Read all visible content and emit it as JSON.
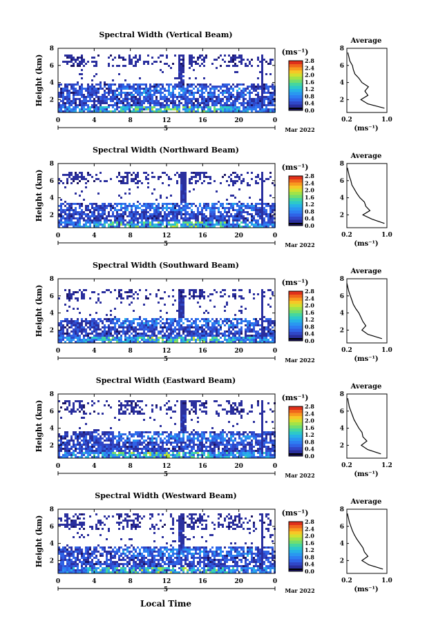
{
  "figure": {
    "xlabel": "Local Time",
    "date_label": "Mar 2022",
    "day_label": "5",
    "ylabel": "Height (km)",
    "unit_label": "(ms⁻¹)",
    "average_title": "Average",
    "average_xlabel": "(ms⁻¹)"
  },
  "colormap": [
    "#1b1464",
    "#2a2f9e",
    "#3047c8",
    "#2f63e6",
    "#2d7ef2",
    "#2a97f0",
    "#27b2e6",
    "#2dc9c9",
    "#45d6a0",
    "#72de6e",
    "#a2e348",
    "#d2e030",
    "#f6c826",
    "#f89a1f",
    "#f0661c",
    "#e0301a"
  ],
  "chart_data": [
    {
      "type": "heatmap",
      "title": "Spectral Width (Vertical Beam)",
      "xlabel": "Local Time",
      "ylabel": "Height (km)",
      "x_range": [
        0,
        24
      ],
      "y_range": [
        0.5,
        8
      ],
      "x_ticks": [
        "0",
        "4",
        "8",
        "12",
        "16",
        "20",
        "0"
      ],
      "y_ticks": [
        "2",
        "4",
        "6",
        "8"
      ],
      "colorbar": {
        "label": "(ms⁻¹)",
        "ticks": [
          "0.0",
          "0.4",
          "0.8",
          "1.2",
          "1.6",
          "2.0",
          "2.4",
          "2.8"
        ],
        "range": [
          0,
          2.8
        ]
      },
      "low_layer_top_km": 3.9,
      "gap_km": [
        4.0,
        5.9
      ],
      "upper_top_km": 7.3,
      "average_profile": {
        "xlim": [
          0.2,
          1.0
        ],
        "x_ticks": [
          "0.2",
          "1.0"
        ],
        "ylim": [
          0.5,
          8
        ],
        "y_ticks": [
          "2",
          "4",
          "6",
          "8"
        ],
        "height_km": [
          1.0,
          1.5,
          2.0,
          2.5,
          3.0,
          3.5,
          4.0,
          4.5,
          5.0,
          5.5,
          6.0,
          6.5,
          7.0,
          7.5
        ],
        "width": [
          0.95,
          0.62,
          0.48,
          0.62,
          0.56,
          0.63,
          0.5,
          0.44,
          0.36,
          0.33,
          0.31,
          0.26,
          0.24,
          0.22
        ]
      }
    },
    {
      "type": "heatmap",
      "title": "Spectral Width (Northward Beam)",
      "xlabel": "Local Time",
      "ylabel": "Height (km)",
      "x_range": [
        0,
        24
      ],
      "y_range": [
        0.5,
        8
      ],
      "x_ticks": [
        "0",
        "4",
        "8",
        "12",
        "16",
        "20",
        "0"
      ],
      "y_ticks": [
        "2",
        "4",
        "6",
        "8"
      ],
      "colorbar": {
        "label": "(ms⁻¹)",
        "ticks": [
          "0.0",
          "0.4",
          "0.8",
          "1.2",
          "1.6",
          "2.0",
          "2.4",
          "2.8"
        ],
        "range": [
          0,
          2.8
        ]
      },
      "low_layer_top_km": 3.6,
      "gap_km": [
        3.7,
        5.7
      ],
      "upper_top_km": 7.1,
      "average_profile": {
        "xlim": [
          0.2,
          1.0
        ],
        "x_ticks": [
          "0.2",
          "1.0"
        ],
        "ylim": [
          0.5,
          8
        ],
        "y_ticks": [
          "2",
          "4",
          "6",
          "8"
        ],
        "height_km": [
          1.0,
          1.5,
          2.0,
          2.5,
          3.0,
          3.5,
          4.0,
          4.5,
          5.0,
          5.5,
          6.0,
          6.5,
          7.0,
          7.5
        ],
        "width": [
          0.95,
          0.7,
          0.52,
          0.66,
          0.58,
          0.55,
          0.46,
          0.4,
          0.35,
          0.3,
          0.28,
          0.25,
          0.23,
          0.21
        ]
      }
    },
    {
      "type": "heatmap",
      "title": "Spectral Width (Southward Beam)",
      "xlabel": "Local Time",
      "ylabel": "Height (km)",
      "x_range": [
        0,
        24
      ],
      "y_range": [
        0.5,
        8
      ],
      "x_ticks": [
        "0",
        "4",
        "8",
        "12",
        "16",
        "20",
        "0"
      ],
      "y_ticks": [
        "2",
        "4",
        "6",
        "8"
      ],
      "colorbar": {
        "label": "(ms⁻¹)",
        "ticks": [
          "0.0",
          "0.4",
          "0.8",
          "1.2",
          "1.6",
          "2.0",
          "2.4",
          "2.8"
        ],
        "range": [
          0,
          2.8
        ]
      },
      "low_layer_top_km": 3.5,
      "gap_km": [
        3.6,
        5.6
      ],
      "upper_top_km": 7.0,
      "average_profile": {
        "xlim": [
          0.2,
          1.0
        ],
        "x_ticks": [
          "0.2",
          "1.0"
        ],
        "ylim": [
          0.5,
          8
        ],
        "y_ticks": [
          "2",
          "4",
          "6",
          "8"
        ],
        "height_km": [
          1.0,
          1.5,
          2.0,
          2.5,
          3.0,
          3.5,
          4.0,
          4.5,
          5.0,
          5.5,
          6.0,
          6.5,
          7.0,
          7.5
        ],
        "width": [
          0.9,
          0.62,
          0.5,
          0.58,
          0.52,
          0.48,
          0.44,
          0.38,
          0.33,
          0.3,
          0.27,
          0.24,
          0.22,
          0.2
        ]
      }
    },
    {
      "type": "heatmap",
      "title": "Spectral Width (Eastward Beam)",
      "xlabel": "Local Time",
      "ylabel": "Height (km)",
      "x_range": [
        0,
        24
      ],
      "y_range": [
        0.5,
        8
      ],
      "x_ticks": [
        "0",
        "4",
        "8",
        "12",
        "16",
        "20",
        "0"
      ],
      "y_ticks": [
        "2",
        "4",
        "6",
        "8"
      ],
      "colorbar": {
        "label": "(ms⁻¹)",
        "ticks": [
          "0.0",
          "0.4",
          "0.8",
          "1.2",
          "1.6",
          "2.0",
          "2.4",
          "2.8"
        ],
        "range": [
          0,
          2.8
        ]
      },
      "low_layer_top_km": 3.8,
      "gap_km": [
        3.9,
        5.8
      ],
      "upper_top_km": 7.4,
      "average_profile": {
        "xlim": [
          0.2,
          1.2
        ],
        "x_ticks": [
          "0.2",
          "1.2"
        ],
        "ylim": [
          0.5,
          8
        ],
        "y_ticks": [
          "2",
          "4",
          "6",
          "8"
        ],
        "height_km": [
          1.0,
          1.5,
          2.0,
          2.5,
          3.0,
          3.5,
          4.0,
          4.5,
          5.0,
          5.5,
          6.0,
          6.5,
          7.0,
          7.5
        ],
        "width": [
          1.05,
          0.72,
          0.56,
          0.7,
          0.6,
          0.58,
          0.5,
          0.44,
          0.38,
          0.34,
          0.3,
          0.26,
          0.24,
          0.22
        ]
      }
    },
    {
      "type": "heatmap",
      "title": "Spectral Width (Westward Beam)",
      "xlabel": "Local Time",
      "ylabel": "Height (km)",
      "x_range": [
        0,
        24
      ],
      "y_range": [
        0.5,
        8
      ],
      "x_ticks": [
        "0",
        "4",
        "8",
        "12",
        "16",
        "20",
        "0"
      ],
      "y_ticks": [
        "2",
        "4",
        "6",
        "8"
      ],
      "colorbar": {
        "label": "(ms⁻¹)",
        "ticks": [
          "0.0",
          "0.4",
          "0.8",
          "1.2",
          "1.6",
          "2.0",
          "2.4",
          "2.8"
        ],
        "range": [
          0,
          2.8
        ]
      },
      "low_layer_top_km": 3.7,
      "gap_km": [
        3.8,
        5.6
      ],
      "upper_top_km": 7.6,
      "average_profile": {
        "xlim": [
          0.2,
          1.0
        ],
        "x_ticks": [
          "0.2",
          "1.0"
        ],
        "ylim": [
          0.5,
          8
        ],
        "y_ticks": [
          "2",
          "4",
          "6",
          "8"
        ],
        "height_km": [
          1.0,
          1.5,
          2.0,
          2.5,
          3.0,
          3.5,
          4.0,
          4.5,
          5.0,
          5.5,
          6.0,
          6.5,
          7.0,
          7.5
        ],
        "width": [
          0.92,
          0.64,
          0.5,
          0.62,
          0.55,
          0.52,
          0.46,
          0.4,
          0.35,
          0.31,
          0.28,
          0.25,
          0.23,
          0.21
        ]
      }
    }
  ]
}
